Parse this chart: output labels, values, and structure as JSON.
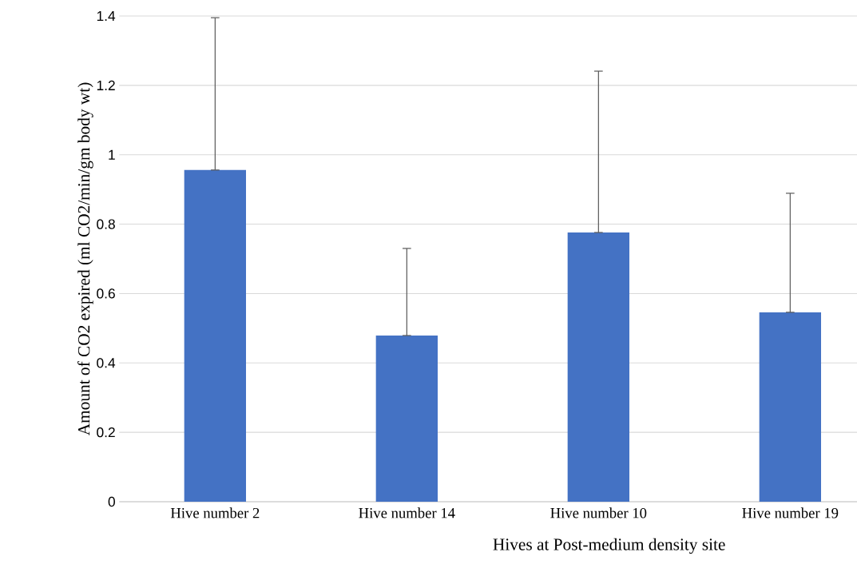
{
  "chart_data": {
    "type": "bar",
    "xlabel": "Hives at Post-medium density site",
    "ylabel": "Amount of CO2 expired (ml CO2/min/gm body wt)",
    "categories": [
      "Hive number 2",
      "Hive number 14",
      "Hive number 10",
      "Hive number 19"
    ],
    "values": [
      0.956,
      0.479,
      0.776,
      0.546
    ],
    "errors": [
      [
        0.956,
        1.395
      ],
      [
        0.479,
        0.73
      ],
      [
        0.776,
        1.241
      ],
      [
        0.546,
        0.889
      ]
    ],
    "color": "#4472c4",
    "ylim": [
      0,
      1.4
    ],
    "yticks": [
      0,
      0.2,
      0.4,
      0.6,
      0.8,
      1,
      1.2,
      1.4
    ],
    "grid": "y"
  }
}
